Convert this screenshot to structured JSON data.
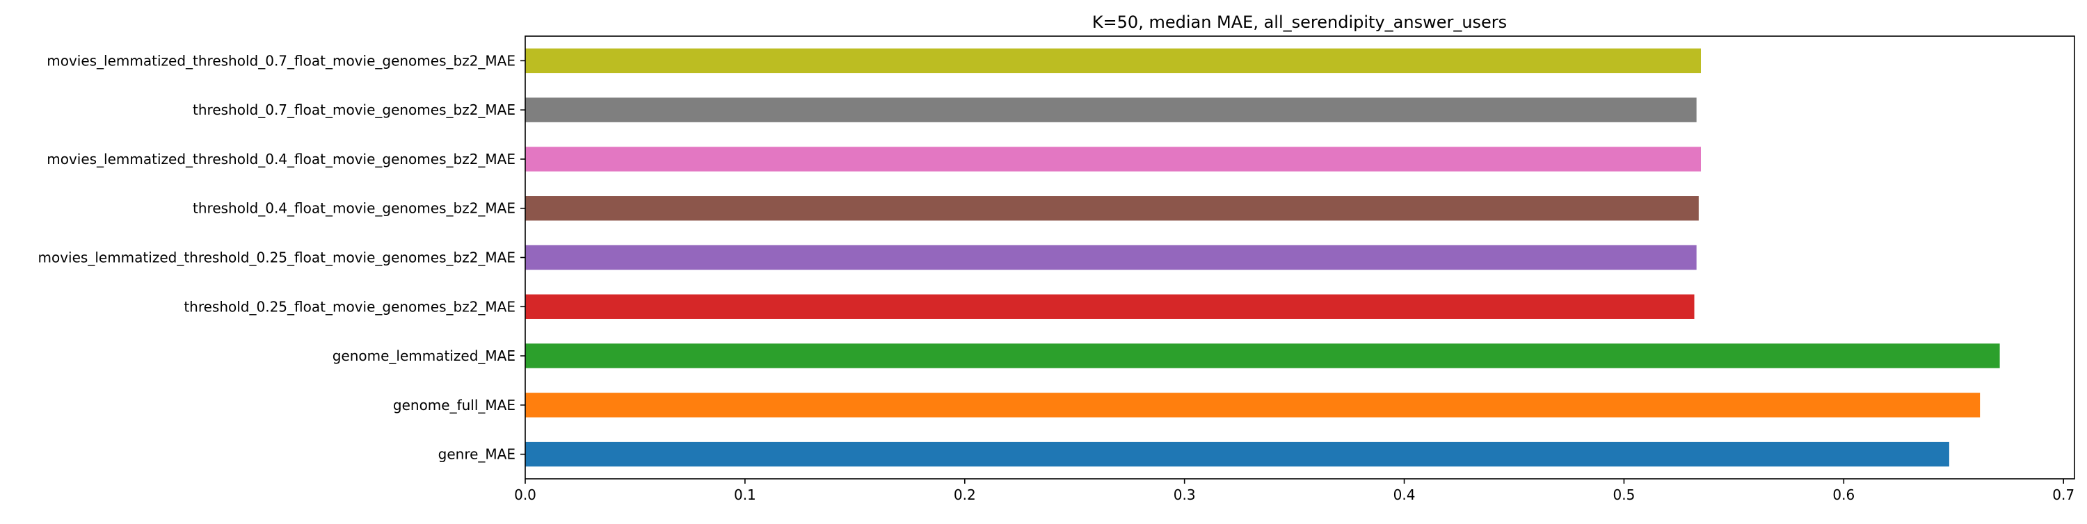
{
  "chart_data": {
    "type": "bar",
    "orientation": "horizontal",
    "title": "K=50, median MAE, all_serendipity_answer_users",
    "xlabel": "",
    "ylabel": "",
    "xlim": [
      0,
      0.705
    ],
    "grid": false,
    "legend": "none",
    "xticks": [
      0.0,
      0.1,
      0.2,
      0.3,
      0.4,
      0.5,
      0.6,
      0.7
    ],
    "xtick_labels": [
      "0.0",
      "0.1",
      "0.2",
      "0.3",
      "0.4",
      "0.5",
      "0.6",
      "0.7"
    ],
    "categories": [
      "genre_MAE",
      "genome_full_MAE",
      "genome_lemmatized_MAE",
      "threshold_0.25_float_movie_genomes_bz2_MAE",
      "movies_lemmatized_threshold_0.25_float_movie_genomes_bz2_MAE",
      "threshold_0.4_float_movie_genomes_bz2_MAE",
      "movies_lemmatized_threshold_0.4_float_movie_genomes_bz2_MAE",
      "threshold_0.7_float_movie_genomes_bz2_MAE",
      "movies_lemmatized_threshold_0.7_float_movie_genomes_bz2_MAE"
    ],
    "values": [
      0.648,
      0.662,
      0.671,
      0.532,
      0.533,
      0.534,
      0.535,
      0.533,
      0.535
    ],
    "colors": [
      "#1f77b4",
      "#ff7f0e",
      "#2ca02c",
      "#d62728",
      "#9467bd",
      "#8c564b",
      "#e377c2",
      "#7f7f7f",
      "#bcbd22"
    ]
  }
}
